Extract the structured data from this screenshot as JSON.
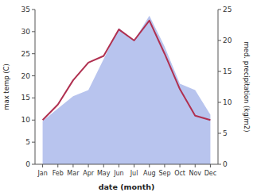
{
  "chart_data": {
    "type": "line",
    "categories": [
      "Jan",
      "Feb",
      "Mar",
      "Apr",
      "May",
      "Jun",
      "Jul",
      "Aug",
      "Sep",
      "Oct",
      "Nov",
      "Dec"
    ],
    "series": [
      {
        "type": "area",
        "axis": "y2",
        "color": "#b8c4ee",
        "values": [
          7,
          9,
          11,
          12,
          17,
          22,
          20,
          24,
          19,
          13,
          12,
          8
        ]
      },
      {
        "type": "line",
        "color": "#b03050",
        "values": [
          10,
          13.5,
          19,
          23,
          24.5,
          30.5,
          28,
          32.5,
          25,
          17,
          11,
          10
        ]
      }
    ],
    "x_label": "date (month)",
    "y_label": "max temp (C)",
    "y2_label": "med. precipitation (kg/m2)",
    "ylim": [
      0,
      35
    ],
    "yticks": [
      0,
      5,
      10,
      15,
      20,
      25,
      30,
      35
    ],
    "y2lim": [
      0,
      25
    ],
    "y2ticks": [
      0,
      5,
      10,
      15,
      20,
      25
    ]
  }
}
